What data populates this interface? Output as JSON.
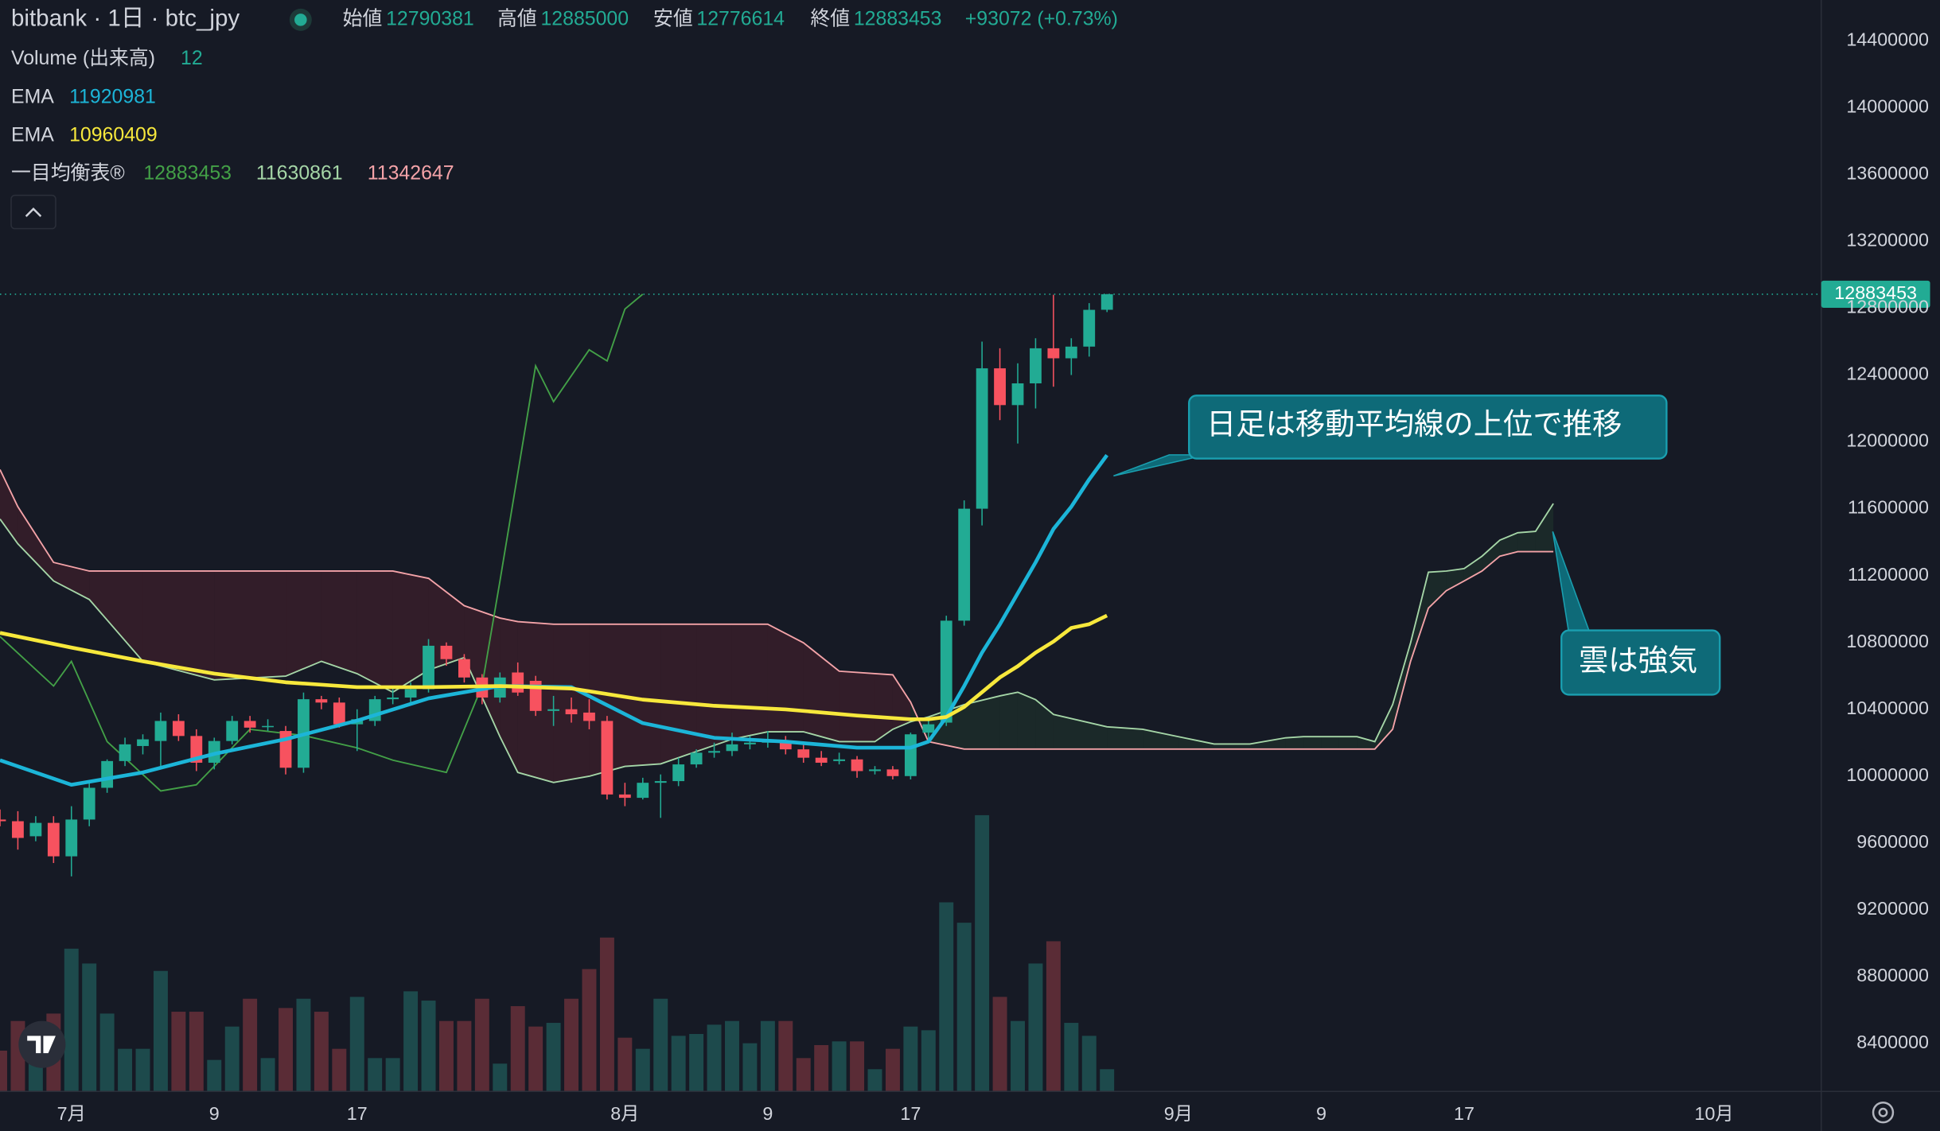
{
  "chart_data": {
    "type": "candlestick",
    "title": "bitbank · 1日 · btc_jpy",
    "ohlc_labels": [
      "始値",
      "高値",
      "安値",
      "終値"
    ],
    "change": "+93072 (+0.73%)",
    "up_color": "#22ab94",
    "down_color": "#f7525f",
    "x": [
      "06-27",
      "06-28",
      "06-29",
      "06-30",
      "07-01",
      "07-02",
      "07-03",
      "07-04",
      "07-05",
      "07-06",
      "07-07",
      "07-08",
      "07-09",
      "07-10",
      "07-11",
      "07-12",
      "07-13",
      "07-14",
      "07-15",
      "07-16",
      "07-17",
      "07-18",
      "07-19",
      "07-20",
      "07-21",
      "07-22",
      "07-23",
      "07-24",
      "07-25",
      "07-26",
      "07-27",
      "07-28",
      "07-29",
      "07-30",
      "07-31",
      "08-01",
      "08-02",
      "08-03",
      "08-04",
      "08-05",
      "08-06",
      "08-07",
      "08-08",
      "08-09",
      "08-10",
      "08-11",
      "08-12",
      "08-13",
      "08-14",
      "08-15",
      "08-16",
      "08-17",
      "08-18",
      "08-19",
      "08-20",
      "08-21",
      "08-22",
      "08-23",
      "08-24",
      "08-25",
      "08-26",
      "08-27",
      "08-28"
    ],
    "open": [
      9740000,
      9730000,
      9640000,
      9720000,
      9520000,
      9740000,
      9930000,
      10090000,
      10180000,
      10210000,
      10330000,
      10240000,
      10080000,
      10210000,
      10330000,
      10300000,
      10270000,
      10050000,
      10460000,
      10440000,
      10310000,
      10330000,
      10460000,
      10470000,
      10520000,
      10780000,
      10700000,
      10590000,
      10470000,
      10620000,
      10570000,
      10390000,
      10400000,
      10380000,
      10330000,
      9890000,
      9870000,
      9960000,
      9970000,
      10070000,
      10140000,
      10150000,
      10190000,
      10200000,
      10210000,
      10160000,
      10110000,
      10090000,
      10100000,
      10030000,
      10040000,
      10000000,
      10260000,
      10320000,
      10930000,
      11600000,
      12440000,
      12220000,
      12350000,
      12560000,
      12500000,
      12570000,
      12790381
    ],
    "high": [
      9800000,
      9790000,
      9760000,
      9760000,
      9820000,
      9960000,
      10100000,
      10230000,
      10250000,
      10380000,
      10370000,
      10280000,
      10230000,
      10360000,
      10360000,
      10340000,
      10300000,
      10500000,
      10480000,
      10470000,
      10400000,
      10480000,
      10540000,
      10560000,
      10820000,
      10800000,
      10730000,
      10610000,
      10620000,
      10680000,
      10600000,
      10480000,
      10470000,
      10460000,
      10360000,
      9960000,
      9990000,
      10010000,
      10110000,
      10160000,
      10200000,
      10260000,
      10240000,
      10270000,
      10240000,
      10200000,
      10150000,
      10140000,
      10120000,
      10060000,
      10060000,
      10260000,
      10340000,
      10960000,
      11650000,
      12600000,
      12560000,
      12470000,
      12620000,
      12880000,
      12620000,
      12830000,
      12885000
    ],
    "low": [
      9700000,
      9560000,
      9610000,
      9480000,
      9400000,
      9700000,
      9900000,
      10060000,
      10130000,
      10050000,
      10210000,
      10030000,
      10040000,
      10190000,
      10260000,
      10270000,
      10010000,
      10020000,
      10400000,
      10290000,
      10150000,
      10300000,
      10430000,
      10430000,
      10500000,
      10660000,
      10560000,
      10430000,
      10440000,
      10480000,
      10360000,
      10300000,
      10320000,
      10280000,
      9860000,
      9820000,
      9860000,
      9750000,
      9940000,
      10050000,
      10110000,
      10120000,
      10160000,
      10170000,
      10130000,
      10080000,
      10060000,
      10070000,
      9990000,
      10010000,
      9980000,
      9980000,
      10200000,
      10300000,
      10900000,
      11500000,
      12130000,
      11990000,
      12200000,
      12330000,
      12400000,
      12510000,
      12776614
    ],
    "close": [
      9730000,
      9630000,
      9720000,
      9520000,
      9740000,
      9930000,
      10090000,
      10190000,
      10220000,
      10330000,
      10240000,
      10080000,
      10210000,
      10330000,
      10290000,
      10300000,
      10050000,
      10460000,
      10440000,
      10310000,
      10340000,
      10460000,
      10470000,
      10520000,
      10780000,
      10700000,
      10590000,
      10470000,
      10590000,
      10500000,
      10390000,
      10400000,
      10370000,
      10330000,
      9890000,
      9870000,
      9960000,
      9970000,
      10070000,
      10140000,
      10150000,
      10190000,
      10200000,
      10210000,
      10160000,
      10110000,
      10080000,
      10100000,
      10030000,
      10040000,
      10000000,
      10250000,
      10310000,
      10930000,
      11600000,
      12440000,
      12220000,
      12350000,
      12560000,
      12500000,
      12570000,
      12790000,
      12883453
    ],
    "volume_name": "Volume (出来高)",
    "volume_up_color": "#1d4a4c",
    "volume_down_color": "#5a2c36",
    "volume": [
      22,
      38,
      30,
      42,
      77,
      69,
      42,
      23,
      23,
      65,
      43,
      43,
      17,
      35,
      50,
      18,
      45,
      50,
      43,
      23,
      51,
      18,
      18,
      54,
      49,
      38,
      38,
      50,
      15,
      46,
      35,
      37,
      50,
      66,
      83,
      29,
      23,
      50,
      30,
      31,
      36,
      38,
      26,
      38,
      38,
      18,
      25,
      27,
      27,
      12,
      23,
      35,
      33,
      102,
      91,
      149,
      51,
      38,
      69,
      81,
      37,
      30,
      12
    ],
    "series": [
      {
        "name": "EMA",
        "color": "#1cb5d8",
        "x": [
          "06-27",
          "07-01",
          "07-05",
          "07-09",
          "07-13",
          "07-17",
          "07-21",
          "07-25",
          "07-29",
          "08-02",
          "08-06",
          "08-10",
          "08-14",
          "08-17",
          "08-18",
          "08-19",
          "08-20",
          "08-21",
          "08-22",
          "08-23",
          "08-24",
          "08-25",
          "08-26",
          "08-27",
          "08-28"
        ],
        "values": [
          10095000,
          9948000,
          10022000,
          10133000,
          10221000,
          10332000,
          10465000,
          10539000,
          10532000,
          10317000,
          10229000,
          10206000,
          10170000,
          10170000,
          10206000,
          10354000,
          10539000,
          10739000,
          10909000,
          11094000,
          11279000,
          11479000,
          11612000,
          11775000,
          11920981
        ]
      },
      {
        "name": "EMA",
        "color": "#f7e83c",
        "x": [
          "06-27",
          "07-01",
          "07-05",
          "07-09",
          "07-13",
          "07-17",
          "07-21",
          "07-25",
          "07-29",
          "08-02",
          "08-06",
          "08-10",
          "08-14",
          "08-17",
          "08-18",
          "08-19",
          "08-20",
          "08-21",
          "08-22",
          "08-23",
          "08-24",
          "08-25",
          "08-26",
          "08-27",
          "08-28"
        ],
        "values": [
          10857000,
          10769000,
          10687000,
          10613000,
          10561000,
          10532000,
          10532000,
          10539000,
          10524000,
          10458000,
          10421000,
          10399000,
          10362000,
          10340000,
          10340000,
          10354000,
          10414000,
          10502000,
          10591000,
          10657000,
          10739000,
          10805000,
          10887000,
          10909000,
          10960409
        ]
      }
    ],
    "ichimoku": {
      "name": "一目均衡表®",
      "lagging_color": "#43a047",
      "lagging_x": [
        "06-27",
        "06-30",
        "07-01",
        "07-03",
        "07-06",
        "07-08",
        "07-11",
        "07-14",
        "07-17",
        "07-19",
        "07-22",
        "07-23",
        "07-24",
        "07-25",
        "07-27",
        "07-28",
        "07-30",
        "07-31",
        "08-01",
        "08-02"
      ],
      "lagging": [
        10835000,
        10539000,
        10687000,
        10206000,
        9911000,
        9948000,
        10280000,
        10243000,
        10169000,
        10095000,
        10022000,
        10280000,
        10539000,
        11168000,
        12455000,
        12240000,
        12551000,
        12484000,
        12795000,
        12883453
      ],
      "leading_x": [
        "06-27",
        "06-28",
        "06-30",
        "07-02",
        "07-05",
        "07-09",
        "07-13",
        "07-15",
        "07-17",
        "07-19",
        "07-21",
        "07-23",
        "07-25",
        "07-26",
        "07-28",
        "07-30",
        "08-01",
        "08-03",
        "08-05",
        "08-07",
        "08-09",
        "08-11",
        "08-13",
        "08-15",
        "08-16",
        "08-17",
        "08-18",
        "08-20",
        "08-22",
        "08-23",
        "08-24",
        "08-25",
        "08-28",
        "08-30",
        "09-01",
        "09-03",
        "09-05",
        "09-07",
        "09-08",
        "09-09",
        "09-10",
        "09-11",
        "09-12",
        "09-13",
        "09-14",
        "09-15",
        "09-16",
        "09-17",
        "09-18",
        "09-19",
        "09-20",
        "09-21",
        "09-22"
      ],
      "span_a_color": "#a5d6a7",
      "span_a": [
        11538000,
        11390000,
        11168000,
        11057000,
        10687000,
        10576000,
        10598000,
        10687000,
        10613000,
        10502000,
        10635000,
        10709000,
        10236000,
        10022000,
        9962000,
        9999000,
        10058000,
        10073000,
        10147000,
        10221000,
        10265000,
        10265000,
        10206000,
        10206000,
        10280000,
        10325000,
        10354000,
        10428000,
        10480000,
        10502000,
        10458000,
        10369000,
        10295000,
        10280000,
        10236000,
        10192000,
        10192000,
        10229000,
        10236000,
        10236000,
        10236000,
        10236000,
        10206000,
        10428000,
        10798000,
        11220000,
        11227000,
        11242000,
        11316000,
        11412000,
        11456000,
        11464000,
        11630861
      ],
      "span_b_color": "#f4a3a8",
      "span_b": [
        11834000,
        11612000,
        11279000,
        11227000,
        11227000,
        11227000,
        11227000,
        11227000,
        11227000,
        11227000,
        11183000,
        11020000,
        10946000,
        10924000,
        10909000,
        10909000,
        10909000,
        10909000,
        10909000,
        10909000,
        10909000,
        10798000,
        10628000,
        10613000,
        10606000,
        10443000,
        10206000,
        10162000,
        10162000,
        10162000,
        10162000,
        10162000,
        10162000,
        10162000,
        10162000,
        10162000,
        10162000,
        10162000,
        10162000,
        10162000,
        10162000,
        10162000,
        10162000,
        10280000,
        10687000,
        11005000,
        11109000,
        11168000,
        11227000,
        11316000,
        11342647,
        11342647,
        11342647
      ],
      "cloud_up_color": "rgba(67,160,71,0.12)",
      "cloud_down_color": "rgba(242,54,69,0.13)"
    },
    "ylim": [
      8113000,
      14644000
    ],
    "yticks": [
      8400000,
      8800000,
      9200000,
      9600000,
      10000000,
      10400000,
      10800000,
      11200000,
      11600000,
      12000000,
      12400000,
      12800000,
      13200000,
      13600000,
      14000000,
      14400000
    ],
    "xlim": [
      "06-27",
      "10-07"
    ],
    "xticks": [
      {
        "value": "07-01",
        "label": "7月"
      },
      {
        "value": "07-09",
        "label": "9"
      },
      {
        "value": "07-17",
        "label": "17"
      },
      {
        "value": "08-01",
        "label": "8月"
      },
      {
        "value": "08-09",
        "label": "9"
      },
      {
        "value": "08-17",
        "label": "17"
      },
      {
        "value": "09-01",
        "label": "9月"
      },
      {
        "value": "09-09",
        "label": "9"
      },
      {
        "value": "09-17",
        "label": "17"
      },
      {
        "value": "10-01",
        "label": "10月"
      }
    ],
    "grid": false,
    "annotations": [
      "日足は移動平均線の上位で推移",
      "雲は強気"
    ]
  }
}
